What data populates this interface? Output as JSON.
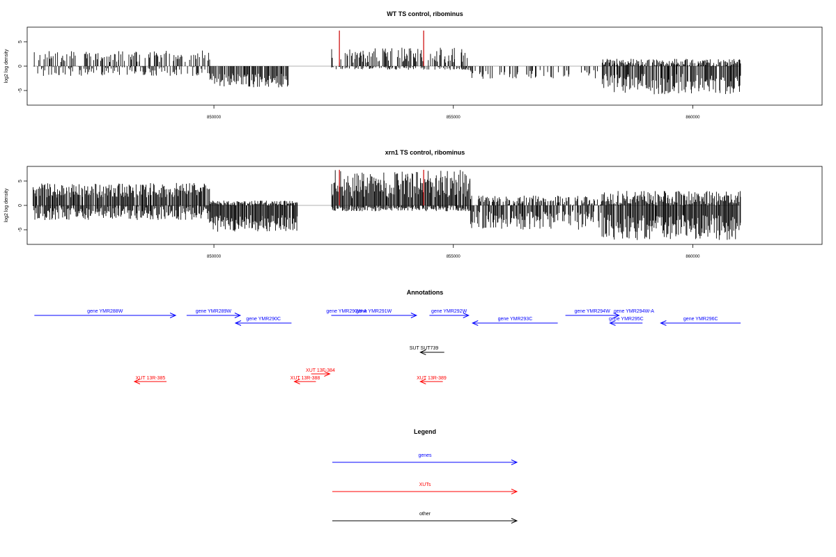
{
  "colors": {
    "gene": "#0000ff",
    "xut": "#ff0000",
    "other": "#000000",
    "marker": "#cc0000"
  },
  "chart_data": [
    {
      "type": "bar",
      "title": "WT TS control, ribominus",
      "ylabel": "log2 log density",
      "xlim": [
        846100,
        862700
      ],
      "ylim": [
        -8,
        8
      ],
      "xticks": [
        850000,
        855000,
        860000
      ],
      "xtick_labels": [
        "850000",
        "855000",
        "860000"
      ],
      "yticks": [
        -5,
        0,
        5
      ],
      "ytick_labels": [
        "-5",
        "0",
        "5"
      ],
      "grid": false,
      "markers_x": [
        852620,
        854380
      ],
      "markers_height": 7.3,
      "tracks": [
        {
          "from": 846220,
          "to": 849900,
          "low": 0.8,
          "high": 3.2,
          "neg_low": 0,
          "neg_high": 2,
          "sparse": 0.45
        },
        {
          "from": 849900,
          "to": 851550,
          "low": 0,
          "high": 0,
          "neg_low": 1.5,
          "neg_high": 4.4,
          "sparse": 0.9
        },
        {
          "from": 852450,
          "to": 855350,
          "low": 0.6,
          "high": 3.8,
          "neg_low": 0,
          "neg_high": 0.8,
          "sparse": 0.55
        },
        {
          "from": 855350,
          "to": 858100,
          "low": 0,
          "high": 0,
          "neg_low": 0.8,
          "neg_high": 2.6,
          "sparse": 0.3
        },
        {
          "from": 858100,
          "to": 861000,
          "low": 0,
          "high": 1.5,
          "neg_low": 1.6,
          "neg_high": 5.8,
          "sparse": 0.85
        }
      ],
      "seed": 7
    },
    {
      "type": "bar",
      "title": "xrn1 TS control, ribominus",
      "ylabel": "log2 log density",
      "xlim": [
        846100,
        862700
      ],
      "ylim": [
        -8,
        8
      ],
      "xticks": [
        850000,
        855000,
        860000
      ],
      "xtick_labels": [
        "850000",
        "855000",
        "860000"
      ],
      "yticks": [
        -5,
        0,
        5
      ],
      "ytick_labels": [
        "-5",
        "0",
        "5"
      ],
      "grid": false,
      "markers_x": [
        852620,
        854380
      ],
      "markers_height": 7.3,
      "tracks": [
        {
          "from": 846220,
          "to": 849900,
          "low": 1.5,
          "high": 4.6,
          "neg_low": 0,
          "neg_high": 3,
          "sparse": 0.95
        },
        {
          "from": 849900,
          "to": 851750,
          "low": 0,
          "high": 1,
          "neg_low": 2,
          "neg_high": 5.4,
          "sparse": 0.95
        },
        {
          "from": 852450,
          "to": 855350,
          "low": 1.5,
          "high": 7.3,
          "neg_low": 0,
          "neg_high": 1.2,
          "sparse": 0.98
        },
        {
          "from": 855350,
          "to": 858100,
          "low": 0,
          "high": 2,
          "neg_low": 1,
          "neg_high": 5,
          "sparse": 0.7
        },
        {
          "from": 858100,
          "to": 861000,
          "low": 0,
          "high": 3,
          "neg_low": 1.8,
          "neg_high": 7.1,
          "sparse": 0.95
        }
      ],
      "seed": 13
    }
  ],
  "annotations": {
    "title": "Annotations",
    "genes": [
      {
        "label": "gene YMR288W",
        "start": 846250,
        "end": 849200,
        "dir": 1,
        "row": 0
      },
      {
        "label": "gene YMR289W",
        "start": 849430,
        "end": 850550,
        "dir": 1,
        "row": 0
      },
      {
        "label": "gene YMR290C",
        "start": 850450,
        "end": 851620,
        "dir": -1,
        "row": 1
      },
      {
        "label": "gene YMR290W-A",
        "start": 852450,
        "end": 852450,
        "dir": 1,
        "row": 0,
        "label_only": true
      },
      {
        "label": "gene YMR291W",
        "start": 852450,
        "end": 854230,
        "dir": 1,
        "row": 0
      },
      {
        "label": "gene YMR292W",
        "start": 854500,
        "end": 855320,
        "dir": 1,
        "row": 0
      },
      {
        "label": "gene YMR293C",
        "start": 855400,
        "end": 857180,
        "dir": -1,
        "row": 1
      },
      {
        "label": "gene YMR294W",
        "start": 857340,
        "end": 858460,
        "dir": 1,
        "row": 0
      },
      {
        "label": "gene YMR294W-A",
        "start": 858450,
        "end": 858450,
        "dir": 1,
        "row": 0,
        "label_only": true
      },
      {
        "label": "gene YMR295C",
        "start": 858270,
        "end": 858950,
        "dir": -1,
        "row": 1
      },
      {
        "label": "gene YMR296C",
        "start": 859330,
        "end": 861000,
        "dir": -1,
        "row": 1
      }
    ],
    "others": [
      {
        "label": "SUT SUT739",
        "start": 854310,
        "end": 854810,
        "dir": -1
      }
    ],
    "xuts": [
      {
        "label": "XUT 13F-384",
        "start": 852030,
        "end": 852420,
        "dir": 1,
        "row": 0
      },
      {
        "label": "XUT 13R-385",
        "start": 848340,
        "end": 849010,
        "dir": -1,
        "row": 1
      },
      {
        "label": "XUT 13R-388",
        "start": 851680,
        "end": 852130,
        "dir": -1,
        "row": 1
      },
      {
        "label": "XUT 13R-389",
        "start": 854310,
        "end": 854780,
        "dir": -1,
        "row": 1
      }
    ]
  },
  "legend": {
    "title": "Legend",
    "items": [
      {
        "label": "genes",
        "kind": "gene"
      },
      {
        "label": "XUTs",
        "kind": "xut"
      },
      {
        "label": "other",
        "kind": "other"
      }
    ]
  }
}
